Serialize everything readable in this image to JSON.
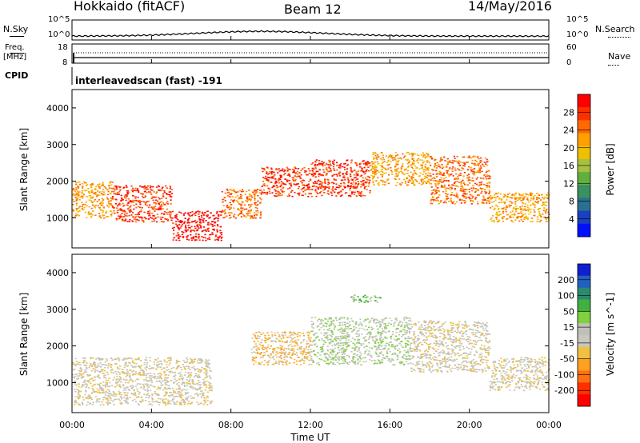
{
  "header": {
    "title": "Hokkaido (fitACF)",
    "beam": "Beam 12",
    "date": "14/May/2016"
  },
  "noise_panel": {
    "left_label": "N.Sky",
    "right_label": "N.Search",
    "left_ticks": [
      "10^5",
      "10^0"
    ],
    "right_ticks": [
      "10^5",
      "10^0"
    ]
  },
  "freq_panel": {
    "left_label_1": "Freq.",
    "left_label_2": "[MHz]",
    "right_label": "Nave",
    "left_ticks": [
      "18",
      "8"
    ],
    "right_ticks": [
      "60",
      "0"
    ]
  },
  "cpid": {
    "label": "CPID",
    "value": "interleavedscan (fast) -191"
  },
  "x_axis": {
    "ticks": [
      "00:00",
      "04:00",
      "08:00",
      "12:00",
      "16:00",
      "20:00",
      "00:00"
    ],
    "label": "Time UT"
  },
  "power_panel": {
    "ylabel": "Slant Range [km]",
    "yticks": [
      "4000",
      "3000",
      "2000",
      "1000"
    ],
    "colorbar_label": "Power [dB]",
    "colorbar_ticks": [
      "28",
      "24",
      "20",
      "16",
      "12",
      "8",
      "4"
    ],
    "colorbar_colors": [
      "#ff0000",
      "#ff3000",
      "#ff6a00",
      "#ffa000",
      "#f0c000",
      "#a8c040",
      "#60b040",
      "#3a9060",
      "#2a7090",
      "#1a40c0",
      "#0010ff"
    ]
  },
  "velocity_panel": {
    "ylabel": "Slant Range [km]",
    "yticks": [
      "4000",
      "3000",
      "2000",
      "1000"
    ],
    "colorbar_label": "Velocity [m s^-1]",
    "colorbar_ticks": [
      "200",
      "100",
      "50",
      "15",
      "-15",
      "-50",
      "-100",
      "-200"
    ],
    "colorbar_colors": [
      "#1020d0",
      "#2060c0",
      "#2a8a70",
      "#40b040",
      "#80d040",
      "#c0c0b8",
      "#c8c8c0",
      "#f0c040",
      "#ffa020",
      "#ff7010",
      "#ff3000",
      "#ff0000"
    ]
  },
  "chart_data": {
    "type": "heatmap",
    "title": "Hokkaido (fitACF)",
    "x_range_hours": [
      0,
      24
    ],
    "y_range_km": [
      180,
      4500
    ],
    "panels": [
      {
        "name": "Power [dB]",
        "scale": [
          0,
          30
        ],
        "regions": [
          {
            "t0": 0.0,
            "t1": 2.0,
            "r0": 1000,
            "r1": 2000,
            "v": 22
          },
          {
            "t0": 2.0,
            "t1": 5.0,
            "r0": 900,
            "r1": 1900,
            "v": 26
          },
          {
            "t0": 5.0,
            "t1": 7.5,
            "r0": 400,
            "r1": 1200,
            "v": 29
          },
          {
            "t0": 7.5,
            "t1": 9.5,
            "r0": 1000,
            "r1": 1800,
            "v": 24
          },
          {
            "t0": 9.5,
            "t1": 12.0,
            "r0": 1600,
            "r1": 2400,
            "v": 27
          },
          {
            "t0": 12.0,
            "t1": 15.0,
            "r0": 1600,
            "r1": 2600,
            "v": 26
          },
          {
            "t0": 15.0,
            "t1": 18.0,
            "r0": 1900,
            "r1": 2800,
            "v": 21
          },
          {
            "t0": 18.0,
            "t1": 21.0,
            "r0": 1400,
            "r1": 2700,
            "v": 24
          },
          {
            "t0": 21.0,
            "t1": 24.0,
            "r0": 900,
            "r1": 1700,
            "v": 20
          }
        ]
      },
      {
        "name": "Velocity [m s^-1]",
        "scale": [
          -200,
          200
        ],
        "regions": [
          {
            "t0": 0.0,
            "t1": 7.0,
            "r0": 400,
            "r1": 1700,
            "v": 0
          },
          {
            "t0": 9.0,
            "t1": 12.0,
            "r0": 1500,
            "r1": 2400,
            "v": -40
          },
          {
            "t0": 12.0,
            "t1": 17.0,
            "r0": 1500,
            "r1": 2800,
            "v": 5
          },
          {
            "t0": 17.0,
            "t1": 21.0,
            "r0": 1300,
            "r1": 2700,
            "v": 0
          },
          {
            "t0": 21.0,
            "t1": 24.0,
            "r0": 800,
            "r1": 1700,
            "v": 0
          },
          {
            "t0": 14.0,
            "t1": 15.5,
            "r0": 3200,
            "r1": 3400,
            "v": 60
          }
        ]
      }
    ]
  }
}
